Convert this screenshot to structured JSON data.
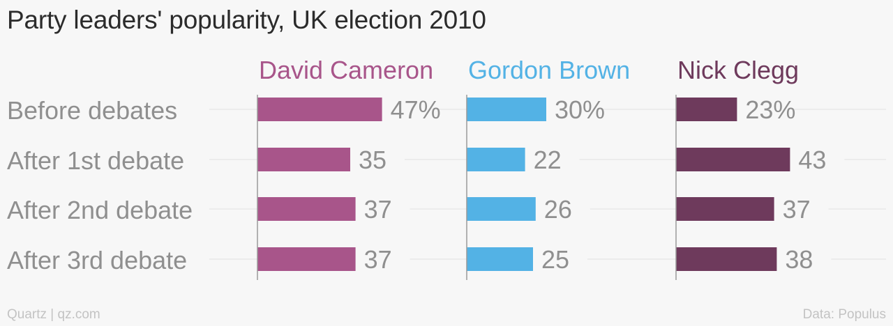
{
  "title": "Party leaders' popularity, UK election 2010",
  "footer": {
    "source": "Quartz | qz.com",
    "data_credit": "Data: Populus"
  },
  "colors": {
    "background": "#f7f7f7",
    "category_text": "#8f8f8f",
    "value_text": "#8f8f8f",
    "gridline": "#e8e8e8",
    "axis": "#9a9a9a"
  },
  "chart_data": {
    "type": "bar",
    "orientation": "horizontal",
    "layout": "small-multiples",
    "title": "Party leaders' popularity, UK election 2010",
    "categories": [
      "Before debates",
      "After 1st debate",
      "After 2nd debate",
      "After 3rd debate"
    ],
    "unit": "%",
    "xlim": [
      0,
      50
    ],
    "grid": true,
    "series": [
      {
        "name": "David Cameron",
        "color": "#a8558a",
        "values": [
          47,
          35,
          37,
          37
        ],
        "labels": [
          "47%",
          "35",
          "37",
          "37"
        ]
      },
      {
        "name": "Gordon Brown",
        "color": "#53b2e5",
        "values": [
          30,
          22,
          26,
          25
        ],
        "labels": [
          "30%",
          "22",
          "26",
          "25"
        ]
      },
      {
        "name": "Nick Clegg",
        "color": "#6e3a5c",
        "values": [
          23,
          43,
          37,
          38
        ],
        "labels": [
          "23%",
          "43",
          "37",
          "38"
        ]
      }
    ]
  }
}
